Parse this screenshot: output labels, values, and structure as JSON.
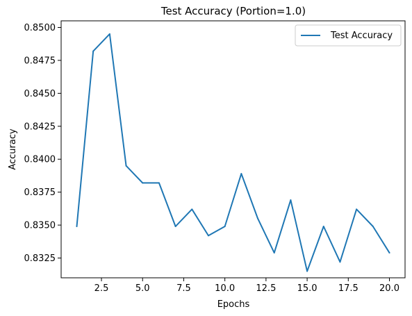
{
  "chart_data": {
    "type": "line",
    "title": "Test Accuracy (Portion=1.0)",
    "xlabel": "Epochs",
    "ylabel": "Accuracy",
    "xlim": [
      0.05,
      20.95
    ],
    "ylim": [
      0.831,
      0.8505
    ],
    "xticks": [
      2.5,
      5.0,
      7.5,
      10.0,
      12.5,
      15.0,
      17.5,
      20.0
    ],
    "xtick_labels": [
      "2.5",
      "5.0",
      "7.5",
      "10.0",
      "12.5",
      "15.0",
      "17.5",
      "20.0"
    ],
    "yticks": [
      0.8325,
      0.835,
      0.8375,
      0.84,
      0.8425,
      0.845,
      0.8475,
      0.85
    ],
    "ytick_labels": [
      "0.8325",
      "0.8350",
      "0.8375",
      "0.8400",
      "0.8425",
      "0.8450",
      "0.8475",
      "0.8500"
    ],
    "grid": false,
    "legend_position": "top-right",
    "x": [
      1,
      2,
      3,
      4,
      5,
      6,
      7,
      8,
      9,
      10,
      11,
      12,
      13,
      14,
      15,
      16,
      17,
      18,
      19,
      20
    ],
    "series": [
      {
        "name": "Test Accuracy",
        "color": "#1f77b4",
        "values": [
          0.8349,
          0.8482,
          0.8495,
          0.8395,
          0.8382,
          0.8382,
          0.8349,
          0.8362,
          0.8342,
          0.8349,
          0.8389,
          0.8355,
          0.8329,
          0.8369,
          0.8315,
          0.8349,
          0.8322,
          0.8362,
          0.8349,
          0.8329
        ]
      }
    ]
  }
}
